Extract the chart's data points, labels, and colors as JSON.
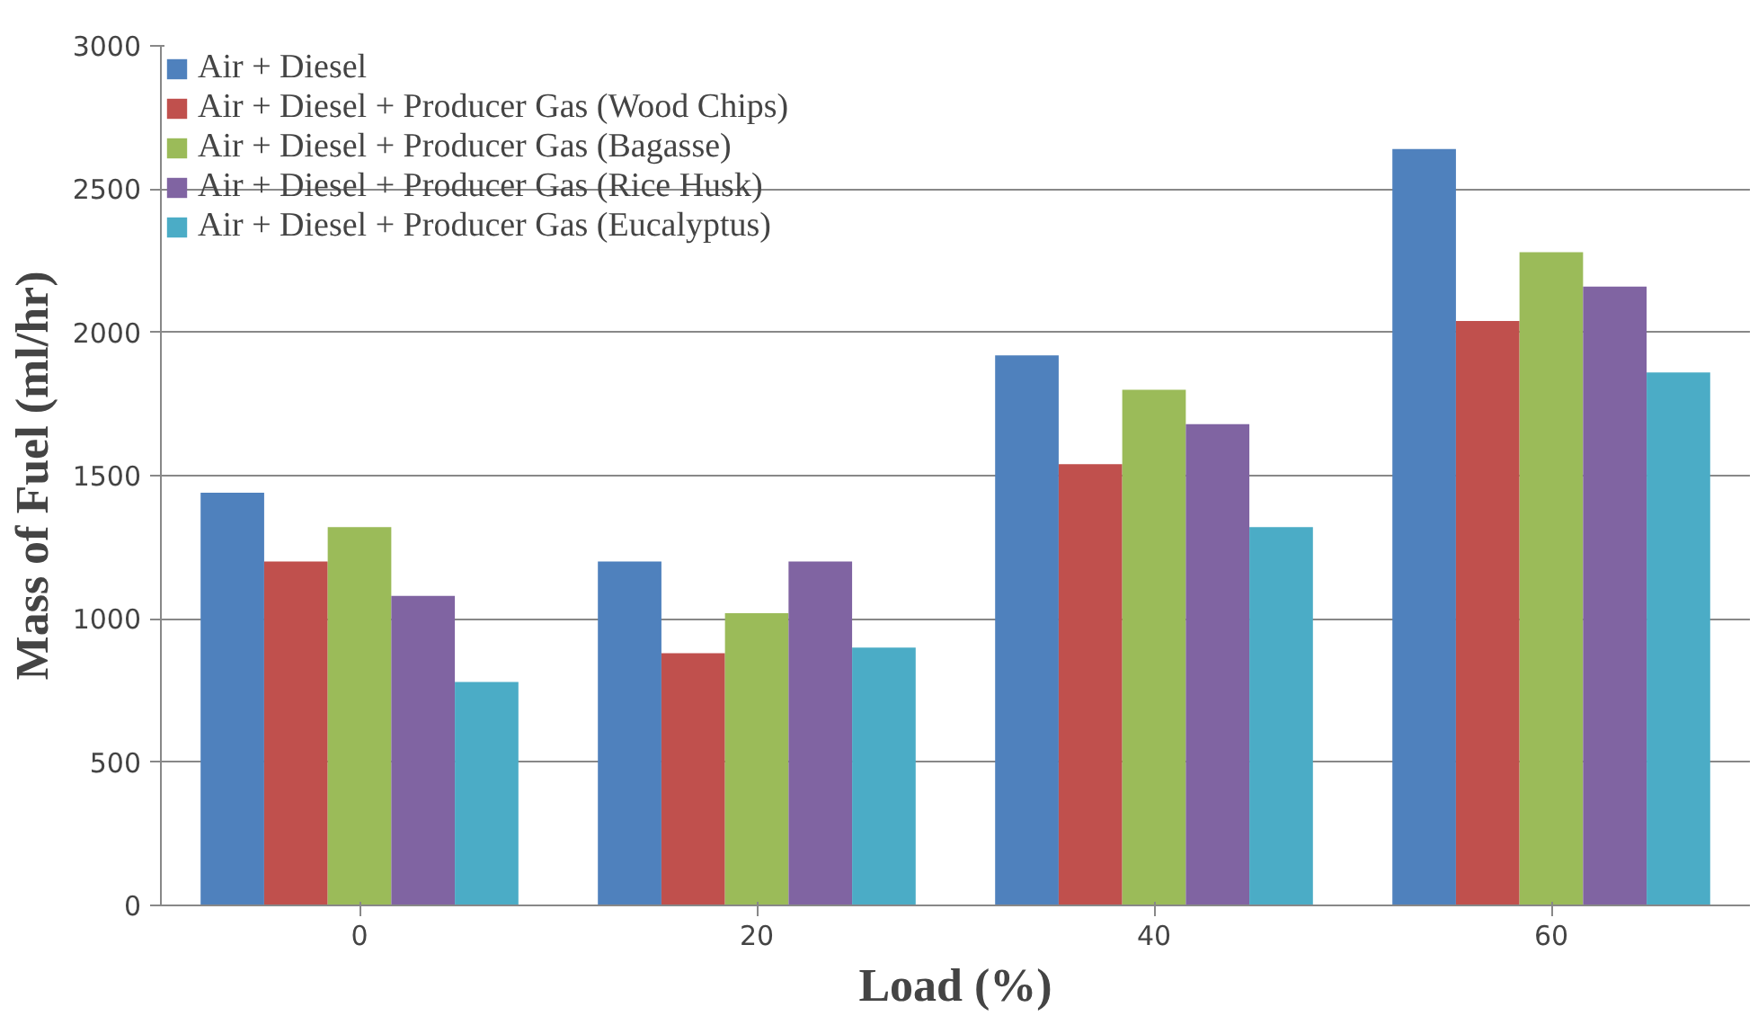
{
  "chart_data": {
    "type": "bar",
    "xlabel": "Load (%)",
    "ylabel": "Mass of Fuel (ml/hr)",
    "categories": [
      "0",
      "20",
      "40",
      "60"
    ],
    "series": [
      {
        "name": "Air + Diesel",
        "color": "#4f81bd",
        "values": [
          1440,
          1200,
          1920,
          2640
        ]
      },
      {
        "name": "Air + Diesel + Producer Gas (Wood Chips)",
        "color": "#c0504d",
        "values": [
          1200,
          880,
          1540,
          2040
        ]
      },
      {
        "name": "Air + Diesel + Producer Gas (Bagasse)",
        "color": "#9bbb59",
        "values": [
          1320,
          1020,
          1800,
          2280
        ]
      },
      {
        "name": "Air + Diesel + Producer Gas (Rice Husk)",
        "color": "#8064a2",
        "values": [
          1080,
          1200,
          1680,
          2160
        ]
      },
      {
        "name": "Air + Diesel + Producer Gas (Eucalyptus)",
        "color": "#4bacc6",
        "values": [
          780,
          900,
          1320,
          1860
        ]
      }
    ],
    "ylim": [
      0,
      3000
    ],
    "yticks": [
      0,
      500,
      1000,
      1500,
      2000,
      2500,
      3000
    ],
    "grid": "y",
    "legend": "top left"
  }
}
